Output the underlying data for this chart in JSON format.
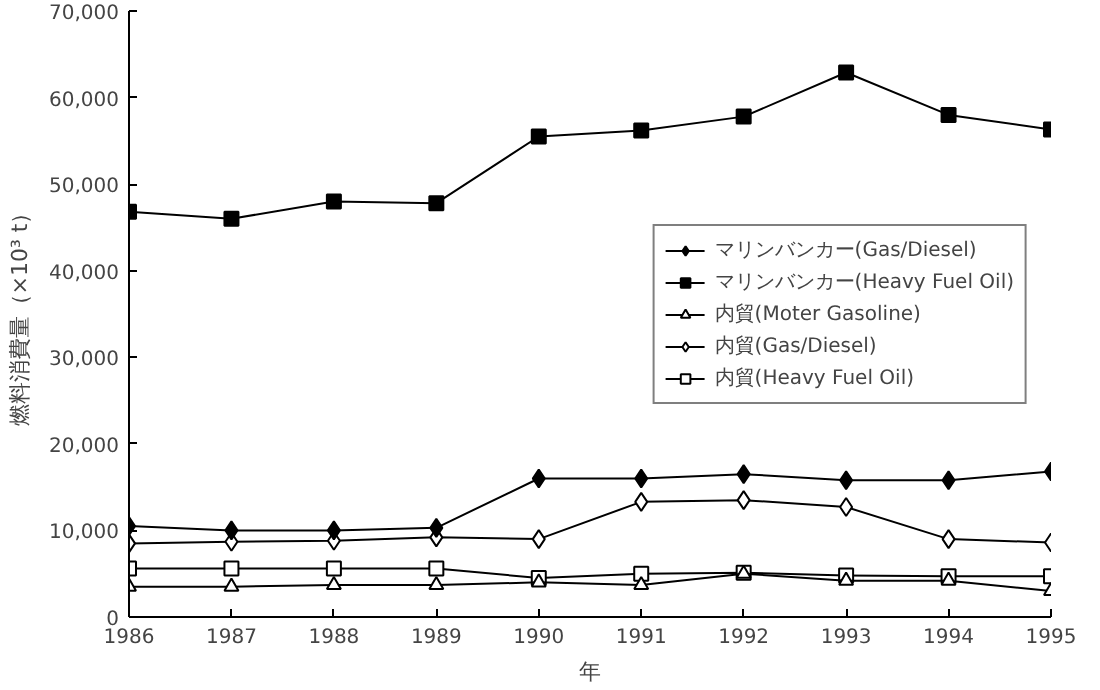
{
  "chart_data": {
    "type": "line",
    "xlabel": "年",
    "ylabel": "燃料消費量（×10³ t）",
    "x": [
      1986,
      1987,
      1988,
      1989,
      1990,
      1991,
      1992,
      1993,
      1994,
      1995
    ],
    "xlim": [
      1986,
      1995
    ],
    "xticks": [
      1986,
      1987,
      1988,
      1989,
      1990,
      1991,
      1992,
      1993,
      1994,
      1995
    ],
    "ylim": [
      0,
      70000
    ],
    "yticks": [
      {
        "value": 0,
        "label": "0"
      },
      {
        "value": 10000,
        "label": "10,000"
      },
      {
        "value": 20000,
        "label": "20,000"
      },
      {
        "value": 30000,
        "label": "30,000"
      },
      {
        "value": 40000,
        "label": "40,000"
      },
      {
        "value": 50000,
        "label": "50,000"
      },
      {
        "value": 60000,
        "label": "60,000"
      },
      {
        "value": 70000,
        "label": "70,000"
      }
    ],
    "grid": false,
    "legend": "right",
    "line_style": "solid",
    "series": [
      {
        "name": "マリンバンカー(Gas/Diesel)",
        "color": "#000000",
        "marker": "diamond",
        "values": [
          10500,
          10000,
          10000,
          10300,
          16000,
          16000,
          16500,
          15800,
          15800,
          16800
        ]
      },
      {
        "name": "マリンバンカー(Heavy Fuel Oil)",
        "color": "#000000",
        "marker": "square",
        "values": [
          46800,
          46000,
          48000,
          47800,
          55500,
          56200,
          57800,
          62900,
          58000,
          56300
        ]
      },
      {
        "name": "内貿(Moter Gasoline)",
        "color": "#ffffff",
        "marker": "triangle",
        "values": [
          3500,
          3500,
          3700,
          3700,
          4000,
          3700,
          5000,
          4200,
          4200,
          3000
        ]
      },
      {
        "name": "内貿(Gas/Diesel)",
        "color": "#ffffff",
        "marker": "diamond",
        "values": [
          8500,
          8700,
          8800,
          9200,
          9000,
          13300,
          13500,
          12700,
          9000,
          8600
        ]
      },
      {
        "name": "内貿(Heavy Fuel Oil)",
        "color": "#ffffff",
        "marker": "square",
        "values": [
          5600,
          5600,
          5600,
          5600,
          4500,
          5000,
          5100,
          4800,
          4700,
          4700
        ]
      }
    ]
  }
}
